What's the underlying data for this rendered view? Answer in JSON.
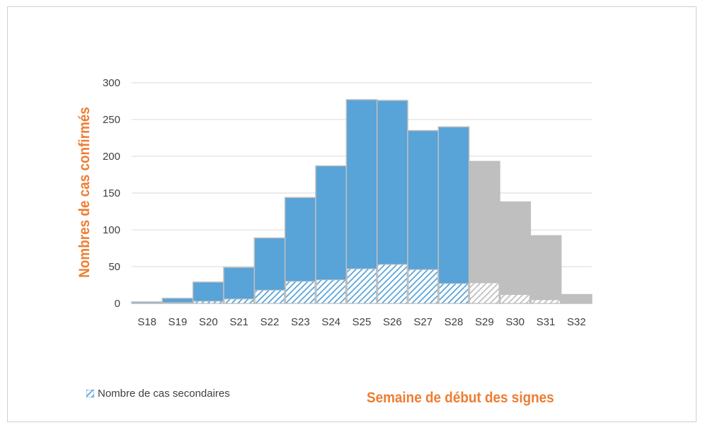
{
  "chart_data": {
    "type": "bar",
    "categories": [
      "S18",
      "S19",
      "S20",
      "S21",
      "S22",
      "S23",
      "S24",
      "S25",
      "S26",
      "S27",
      "S28",
      "S29",
      "S30",
      "S31",
      "S32"
    ],
    "series": [
      {
        "name": "",
        "values": [
          2,
          7,
          29,
          49,
          89,
          144,
          187,
          277,
          276,
          235,
          240,
          193,
          138,
          92,
          12
        ]
      },
      {
        "name": "Nombre de cas secondaires",
        "values": [
          0,
          1,
          3,
          6,
          18,
          30,
          32,
          47,
          53,
          46,
          27,
          28,
          12,
          5,
          0
        ]
      }
    ],
    "highlight_colors": [
      "#58a3d7",
      "#58a3d7",
      "#58a3d7",
      "#58a3d7",
      "#58a3d7",
      "#58a3d7",
      "#58a3d7",
      "#58a3d7",
      "#58a3d7",
      "#58a3d7",
      "#58a3d7",
      "#bfbfbf",
      "#bfbfbf",
      "#bfbfbf",
      "#bfbfbf"
    ],
    "title": "",
    "xlabel": "Semaine de début des signes",
    "ylabel": "Nombres de cas confirmés",
    "ylim": [
      0,
      300
    ],
    "yticks": [
      0,
      50,
      100,
      150,
      200,
      250,
      300
    ],
    "grid": true,
    "legend_position": "bottom-left"
  },
  "legend": {
    "secondary_label": "Nombre de cas secondaires"
  },
  "colors": {
    "blue": "#58a3d7",
    "grey": "#bfbfbf",
    "axis_title": "#ee7d31",
    "text": "#404040"
  }
}
